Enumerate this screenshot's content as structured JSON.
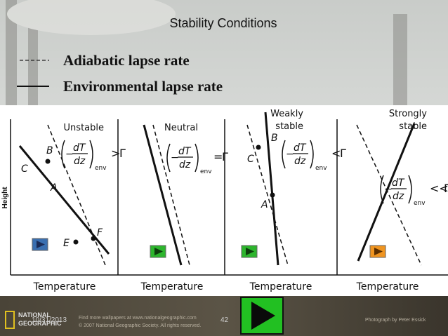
{
  "header": {
    "title": "Stability Conditions"
  },
  "legend": [
    {
      "label": "Adiabatic lapse rate"
    },
    {
      "label": "Environmental lapse rate"
    }
  ],
  "diagram": {
    "y_axis_label": "Height",
    "x_axis_label": "Temperature",
    "formula": {
      "minus": "−",
      "numerator": "dT",
      "denominator": "dz",
      "subscript": "env",
      "gamma": "Γ"
    },
    "panels": [
      {
        "title": [
          "Unstable"
        ],
        "comparator": ">",
        "points": [
          "C",
          "B",
          "A",
          "E",
          "F"
        ]
      },
      {
        "title": [
          "Neutral"
        ],
        "comparator": "=",
        "points": []
      },
      {
        "title": [
          "Weakly",
          "stable"
        ],
        "comparator": "<",
        "points": [
          "C",
          "B",
          "A"
        ]
      },
      {
        "title": [
          "Strongly",
          "stable"
        ],
        "comparator": "<<",
        "points": []
      }
    ]
  },
  "footer": {
    "date": "10/31/2013",
    "page": "42",
    "brand": [
      "NATIONAL",
      "GEOGRAPHIC"
    ],
    "wallpaper_text": "Find more wallpapers at www.nationalgeographic.com",
    "copyright": "© 2007 National Geographic Society. All rights reserved.",
    "credit": "Photograph by Peter Essick"
  }
}
